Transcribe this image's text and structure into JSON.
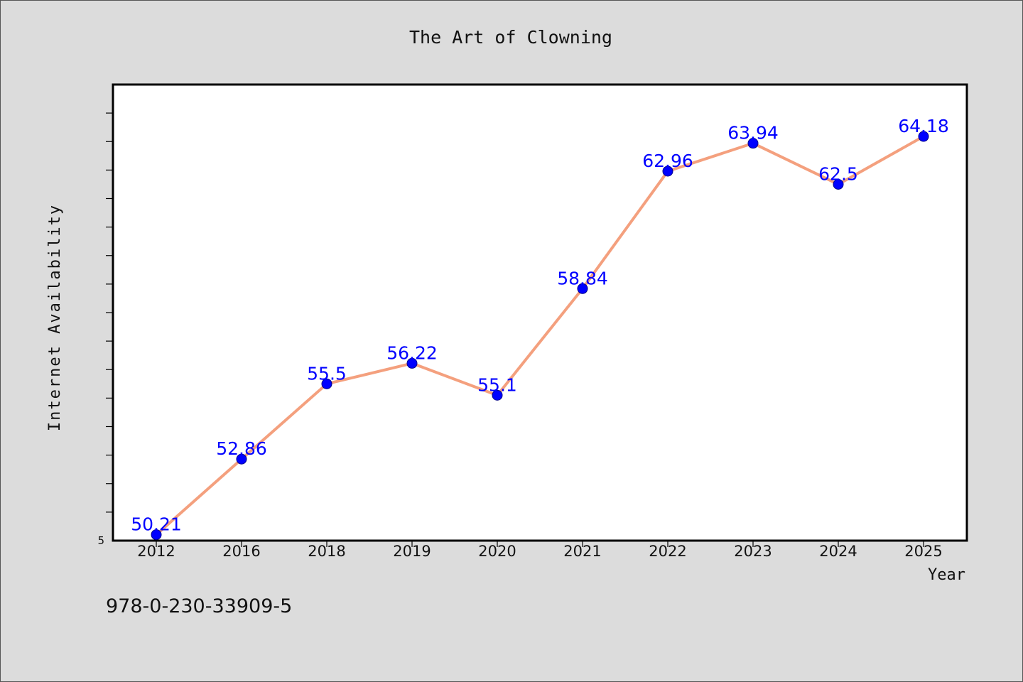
{
  "chart_data": {
    "type": "line",
    "title": "The Art of Clowning",
    "xlabel": "Year",
    "ylabel": "Internet Availability",
    "categories": [
      "2012",
      "2016",
      "2018",
      "2019",
      "2020",
      "2021",
      "2022",
      "2023",
      "2024",
      "2025"
    ],
    "series": [
      {
        "values": [
          50.21,
          52.86,
          55.5,
          56.22,
          55.1,
          58.84,
          62.96,
          63.94,
          62.5,
          64.18
        ],
        "labels": [
          "50.21",
          "52.86",
          "55.5",
          "56.22",
          "55.1",
          "58.84",
          "62.96",
          "63.94",
          "62.5",
          "64.18"
        ],
        "line_color": "#f4a07e",
        "marker_color": "#0000ff",
        "label_color": "#0000ff"
      }
    ],
    "ylim": [
      50,
      66
    ],
    "y_tick_labels": [
      {
        "value": 50,
        "label": "5"
      }
    ],
    "grid": false,
    "annotation": "978-0-230-33909-5"
  }
}
